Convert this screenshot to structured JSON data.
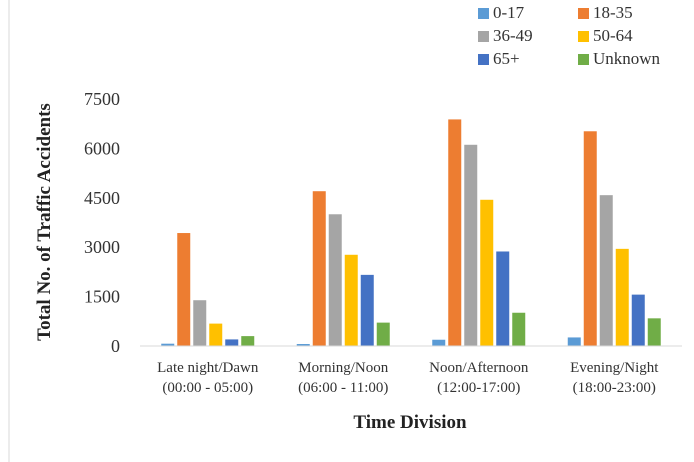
{
  "chart_data": {
    "type": "bar",
    "title": "",
    "xlabel": "Time Division",
    "ylabel": "Total No. of Traffic Accidents",
    "ylim": [
      0,
      7500
    ],
    "yticks": [
      "0",
      "1500",
      "3000",
      "4500",
      "6000",
      "7500"
    ],
    "ytick_values": [
      0,
      1500,
      3000,
      4500,
      6000,
      7500
    ],
    "grid": false,
    "legend_position": "top-right",
    "categories": [
      [
        "Late night/Dawn",
        "(00:00 - 05:00)"
      ],
      [
        "Morning/Noon",
        "(06:00 - 11:00)"
      ],
      [
        "Noon/Afternoon",
        "(12:00-17:00)"
      ],
      [
        "Evening/Night",
        "(18:00-23:00)"
      ]
    ],
    "series": [
      {
        "name": "0-17",
        "color": "#5B9BD5",
        "values": [
          70,
          60,
          190,
          260
        ]
      },
      {
        "name": "18-35",
        "color": "#ED7D31",
        "values": [
          3430,
          4700,
          6880,
          6520
        ]
      },
      {
        "name": "36-49",
        "color": "#A5A5A5",
        "values": [
          1390,
          4000,
          6110,
          4580
        ]
      },
      {
        "name": "50-64",
        "color": "#FFC000",
        "values": [
          680,
          2770,
          4440,
          2950
        ]
      },
      {
        "name": "65+",
        "color": "#4472C4",
        "values": [
          200,
          2160,
          2870,
          1560
        ]
      },
      {
        "name": "Unknown",
        "color": "#70AD47",
        "values": [
          300,
          710,
          1010,
          840
        ]
      }
    ]
  }
}
